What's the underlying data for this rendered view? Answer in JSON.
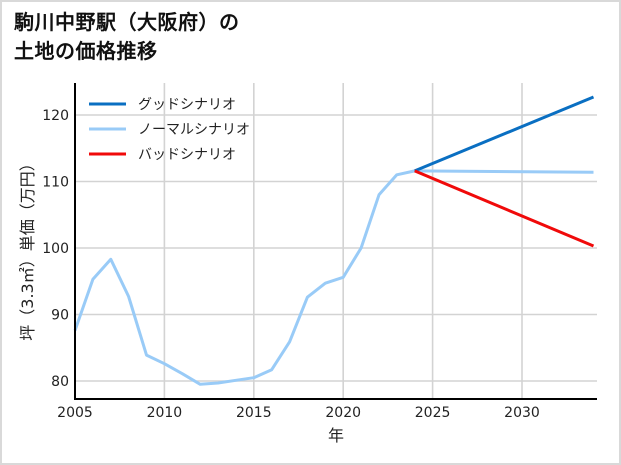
{
  "title": {
    "line1": "駒川中野駅（大阪府）の",
    "line2": "土地の価格推移"
  },
  "chart_data": {
    "type": "line",
    "title": "駒川中野駅（大阪府）の土地の価格推移",
    "xlabel": "年",
    "ylabel": "坪（3.3㎡）単価（万円）",
    "xlim": [
      2005,
      2034
    ],
    "ylim": [
      77.5,
      125
    ],
    "xticks": [
      2005,
      2010,
      2015,
      2020,
      2025,
      2030
    ],
    "yticks": [
      80,
      90,
      100,
      110,
      120
    ],
    "grid": true,
    "legend_position": "upper left",
    "series": [
      {
        "name": "グッドシナリオ",
        "color": "#0a6fc2",
        "x": [
          2024,
          2034
        ],
        "values": [
          111.6,
          122.7
        ]
      },
      {
        "name": "ノーマルシナリオ",
        "color": "#99cbf7",
        "x": [
          2005,
          2006,
          2007,
          2008,
          2009,
          2010,
          2011,
          2012,
          2013,
          2014,
          2015,
          2016,
          2017,
          2018,
          2019,
          2020,
          2021,
          2022,
          2023,
          2024,
          2034
        ],
        "values": [
          87.6,
          95.3,
          98.3,
          92.7,
          83.9,
          82.6,
          81.1,
          79.5,
          79.7,
          80.1,
          80.5,
          81.7,
          85.9,
          92.6,
          94.7,
          95.6,
          100.0,
          108.0,
          111.0,
          111.6,
          111.4
        ]
      },
      {
        "name": "バッドシナリオ",
        "color": "#f00a0a",
        "x": [
          2024,
          2034
        ],
        "values": [
          111.6,
          100.3
        ]
      }
    ]
  },
  "axes": {
    "xlabel": "年",
    "ylabel": "坪（3.3㎡）単価（万円）",
    "xtick_labels": [
      "2005",
      "2010",
      "2015",
      "2020",
      "2025",
      "2030"
    ],
    "ytick_labels": [
      "80",
      "90",
      "100",
      "110",
      "120"
    ]
  },
  "legend": [
    {
      "label": "グッドシナリオ",
      "color": "#0a6fc2"
    },
    {
      "label": "ノーマルシナリオ",
      "color": "#99cbf7"
    },
    {
      "label": "バッドシナリオ",
      "color": "#f00a0a"
    }
  ]
}
